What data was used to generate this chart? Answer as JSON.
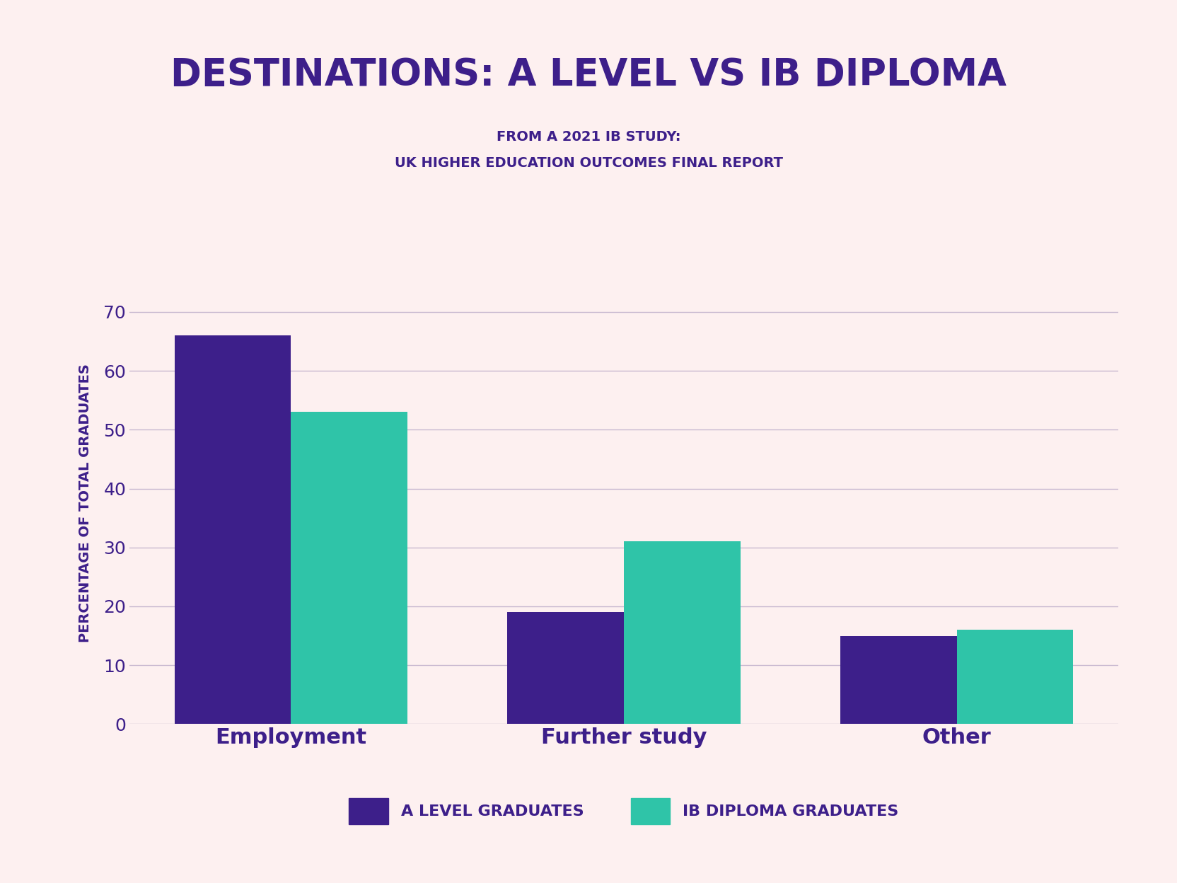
{
  "title": "DESTINATIONS: A LEVEL VS IB DIPLOMA",
  "subtitle_line1": "FROM A 2021 IB STUDY:",
  "subtitle_line2": "UK HIGHER EDUCATION OUTCOMES FINAL REPORT",
  "categories": [
    "Employment",
    "Further study",
    "Other"
  ],
  "a_level_values": [
    66,
    19,
    15
  ],
  "ib_diploma_values": [
    53,
    31,
    16
  ],
  "a_level_color": "#3d1f8a",
  "ib_diploma_color": "#2fc4a8",
  "background_color": "#fdf0f0",
  "title_color": "#3d1f8a",
  "subtitle_color": "#3d1f8a",
  "ylabel": "PERCENTAGE OF TOTAL GRADUATES",
  "ylabel_color": "#3d1f8a",
  "tick_color": "#3d1f8a",
  "grid_color": "#c8b8d0",
  "ylim": [
    0,
    75
  ],
  "yticks": [
    0,
    10,
    20,
    30,
    40,
    50,
    60,
    70
  ],
  "legend_label_a": "A LEVEL GRADUATES",
  "legend_label_ib": "IB DIPLOMA GRADUATES",
  "bar_width": 0.35,
  "title_fontsize": 38,
  "subtitle_fontsize": 14,
  "ylabel_fontsize": 14,
  "tick_fontsize": 18,
  "xtick_fontsize": 22,
  "legend_fontsize": 16
}
